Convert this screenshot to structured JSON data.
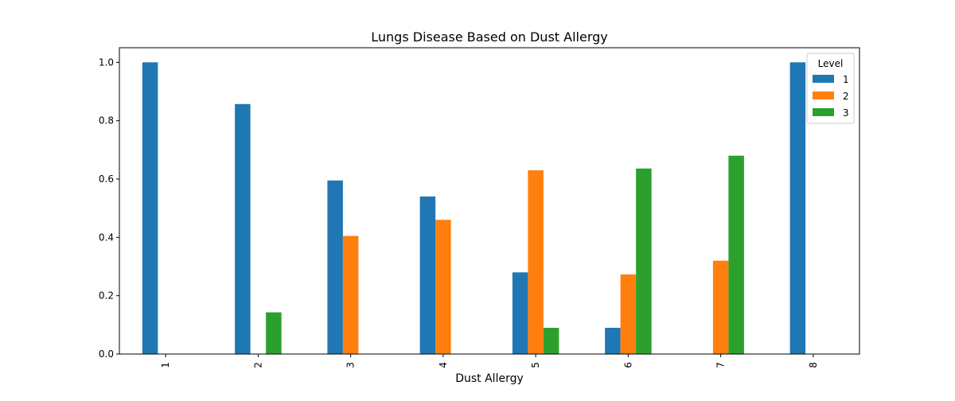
{
  "chart_data": {
    "type": "bar",
    "title": "Lungs Disease Based on Dust Allergy",
    "xlabel": "Dust Allergy",
    "ylabel": "",
    "categories": [
      "1",
      "2",
      "3",
      "4",
      "5",
      "6",
      "7",
      "8"
    ],
    "ylim": [
      0,
      1.05
    ],
    "yticks": [
      "0.0",
      "0.2",
      "0.4",
      "0.6",
      "0.8",
      "1.0"
    ],
    "ytick_values": [
      0,
      0.2,
      0.4,
      0.6,
      0.8,
      1.0
    ],
    "legend": {
      "title": "Level",
      "placement": "top-right"
    },
    "grid": false,
    "series": [
      {
        "name": "1",
        "color": "#1f77b4",
        "values": [
          1.0,
          0.857,
          0.595,
          0.54,
          0.28,
          0.09,
          0.0,
          1.0
        ]
      },
      {
        "name": "2",
        "color": "#ff7f0e",
        "values": [
          0.0,
          0.0,
          0.405,
          0.46,
          0.63,
          0.273,
          0.32,
          0.0
        ]
      },
      {
        "name": "3",
        "color": "#2ca02c",
        "values": [
          0.0,
          0.143,
          0.0,
          0.0,
          0.09,
          0.636,
          0.68,
          0.0
        ]
      }
    ]
  }
}
